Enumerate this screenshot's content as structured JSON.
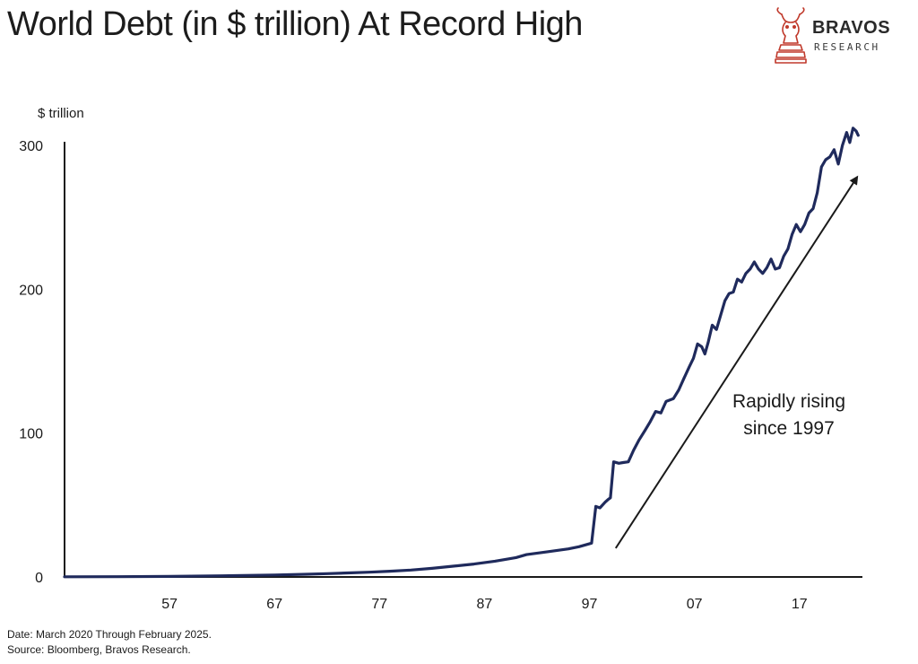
{
  "header": {
    "title": "World Debt (in $ trillion) At Record High"
  },
  "logo": {
    "name": "BRAVOS",
    "subtitle": "RESEARCH",
    "icon": "bull-knight-chess-icon",
    "color": "#c0392b"
  },
  "footer": {
    "date_note": "Date: March 2020 Through February 2025.",
    "source_note": "Source: Bloomberg, Bravos Research."
  },
  "chart_data": {
    "type": "line",
    "title": "World Debt (in $ trillion) At Record High",
    "ylabel": "$ trillion",
    "xlabel": "",
    "xlim": [
      1947,
      2023
    ],
    "ylim": [
      0,
      300
    ],
    "x_ticks": [
      1957,
      1967,
      1977,
      1987,
      1997,
      2007,
      2017
    ],
    "x_tick_labels": [
      "57",
      "67",
      "77",
      "87",
      "97",
      "07",
      "17"
    ],
    "y_ticks": [
      0,
      100,
      200,
      300
    ],
    "y_tick_labels": [
      "0",
      "100",
      "200",
      "300"
    ],
    "grid": false,
    "line_color": "#1f2a5c",
    "annotation": {
      "text_lines": [
        "Rapidly rising",
        "since 1997"
      ],
      "arrow_from": [
        1999.5,
        20
      ],
      "arrow_to": [
        2022.5,
        278
      ]
    },
    "series": [
      {
        "x": [
          1947,
          1952,
          1957,
          1962,
          1967,
          1970,
          1972,
          1974,
          1976,
          1978,
          1980,
          1982,
          1984,
          1986,
          1988,
          1990,
          1991,
          1993,
          1995,
          1996,
          1997.2,
          1997.6,
          1998.0,
          1998.5,
          1998.8,
          1999.0,
          1999.3,
          1999.8,
          2000.2,
          2000.7,
          2001.2,
          2001.7,
          2002.3,
          2002.8,
          2003.3,
          2003.8,
          2004.3,
          2005.0,
          2005.5,
          2006.0,
          2006.5,
          2006.9,
          2007.3,
          2007.7,
          2008.0,
          2008.3,
          2008.7,
          2009.1,
          2009.5,
          2009.9,
          2010.3,
          2010.7,
          2011.1,
          2011.5,
          2011.9,
          2012.3,
          2012.7,
          2013.1,
          2013.5,
          2013.9,
          2014.3,
          2014.7,
          2015.1,
          2015.5,
          2015.9,
          2016.3,
          2016.7,
          2017.1,
          2017.5,
          2017.9,
          2018.3,
          2018.7,
          2019.1,
          2019.5,
          2019.9,
          2020.3,
          2020.7,
          2021.1,
          2021.5,
          2021.8,
          2022.1,
          2022.4,
          2022.6
        ],
        "y": [
          0.1,
          0.2,
          0.4,
          0.8,
          1.4,
          1.9,
          2.3,
          2.8,
          3.3,
          4.0,
          4.8,
          6.0,
          7.5,
          9.0,
          11.0,
          13.5,
          15.5,
          17.5,
          19.5,
          21.0,
          23.5,
          49.0,
          48.0,
          52.0,
          54.0,
          55.0,
          80.0,
          79.0,
          79.5,
          80.0,
          88.0,
          95.0,
          102.0,
          108.0,
          115.0,
          114.0,
          122.0,
          124.0,
          130.0,
          138.0,
          146.0,
          152.0,
          162.0,
          160.0,
          155.0,
          163.0,
          175.0,
          172.0,
          182.0,
          192.0,
          197.0,
          198.0,
          207.0,
          205.0,
          211.0,
          214.0,
          219.0,
          214.0,
          211.0,
          215.0,
          221.0,
          214.0,
          215.0,
          223.0,
          228.0,
          238.0,
          245.0,
          240.0,
          245.0,
          253.0,
          256.0,
          267.0,
          285.0,
          290.0,
          292.0,
          297.0,
          287.0,
          300.0,
          309.0,
          302.0,
          312.0,
          310.0,
          307.0
        ]
      }
    ]
  }
}
